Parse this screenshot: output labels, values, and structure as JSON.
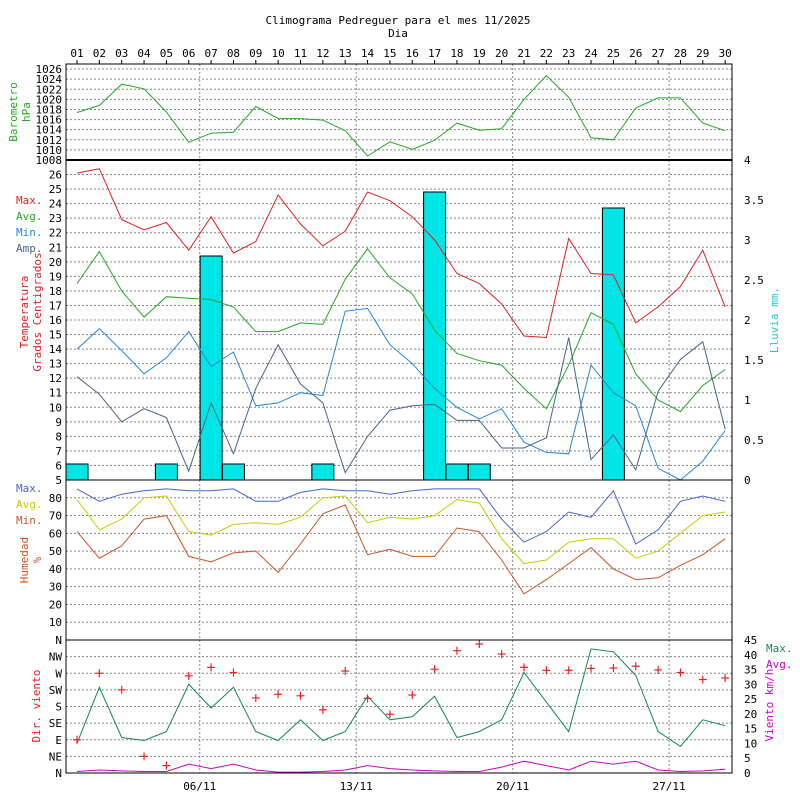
{
  "title": "Climograma Pedreguer para el mes 11/2025",
  "xlabel": "Dia",
  "colors": {
    "pressure": "#22aa22",
    "temp_max": "#dd2222",
    "temp_avg": "#22aa22",
    "temp_min": "#2288dd",
    "temp_amp": "#446688",
    "rain": "#00e5e5",
    "hum_max": "#4466cc",
    "hum_avg": "#cccc00",
    "hum_min": "#cc5522",
    "wind_dir": "#ee2222",
    "wind_max": "#118855",
    "wind_avg": "#cc00cc",
    "grid": "#888888"
  },
  "chart_data": [
    {
      "type": "line",
      "name": "pressure",
      "ylabel": [
        "Barometro",
        "hPa"
      ],
      "x": [
        "01",
        "02",
        "03",
        "04",
        "05",
        "06",
        "07",
        "08",
        "09",
        "10",
        "11",
        "12",
        "13",
        "14",
        "15",
        "16",
        "17",
        "18",
        "19",
        "20",
        "21",
        "22",
        "23",
        "24",
        "25",
        "26",
        "27",
        "28",
        "29",
        "30"
      ],
      "series": [
        {
          "values": [
            1017.4,
            1018.8,
            1023.0,
            1022.1,
            1017.5,
            1011.5,
            1013.3,
            1013.5,
            1018.6,
            1016.2,
            1016.2,
            1015.9,
            1013.8,
            1008.8,
            1011.6,
            1010.1,
            1011.9,
            1015.3,
            1013.9,
            1014.2,
            1020.0,
            1024.7,
            1020.4,
            1012.4,
            1012.0,
            1018.3,
            1020.3,
            1020.3,
            1015.3,
            1013.8
          ]
        }
      ],
      "yticks": [
        "1008",
        "1010",
        "1012",
        "1014",
        "1016",
        "1018",
        "1020",
        "1022",
        "1024",
        "1026"
      ],
      "ylim": [
        1008,
        1027
      ]
    },
    {
      "type": "line+bar",
      "name": "temperature-rain",
      "ylabel": [
        "Temperatura",
        "Grados Centigrados"
      ],
      "y2label": "Lluvia mm.",
      "legend": [
        {
          "label": "Max.",
          "key": "temp_max"
        },
        {
          "label": "Avg.",
          "key": "temp_avg"
        },
        {
          "label": "Min.",
          "key": "temp_min"
        },
        {
          "label": "Amp.",
          "key": "temp_amp"
        }
      ],
      "series": {
        "max": [
          26.1,
          26.4,
          22.9,
          22.2,
          22.7,
          20.8,
          23.1,
          20.6,
          21.4,
          24.6,
          22.6,
          21.1,
          22.1,
          24.8,
          24.2,
          23.1,
          21.5,
          19.2,
          18.5,
          17.1,
          14.9,
          14.8,
          21.6,
          19.2,
          19.1,
          15.8,
          16.9,
          18.3,
          20.8,
          16.9
        ],
        "avg": [
          18.5,
          20.7,
          18.0,
          16.2,
          17.6,
          17.5,
          17.4,
          16.9,
          15.2,
          15.2,
          15.8,
          15.7,
          18.8,
          20.9,
          18.9,
          17.8,
          15.3,
          13.7,
          13.2,
          12.9,
          11.3,
          9.9,
          12.9,
          16.5,
          15.7,
          12.3,
          10.5,
          9.7,
          11.5,
          12.6
        ],
        "min": [
          14.0,
          15.4,
          13.9,
          12.3,
          13.4,
          15.2,
          12.8,
          13.8,
          10.1,
          10.3,
          11.0,
          10.8,
          16.6,
          16.8,
          14.3,
          13.0,
          11.3,
          10.0,
          9.2,
          9.9,
          7.6,
          6.9,
          6.8,
          12.9,
          11.0,
          10.1,
          5.8,
          5.0,
          6.3,
          8.4
        ],
        "amp": [
          12.1,
          10.9,
          9.0,
          9.9,
          9.3,
          5.6,
          10.3,
          6.8,
          11.3,
          14.3,
          11.6,
          10.3,
          5.5,
          8.0,
          9.8,
          10.1,
          10.2,
          9.1,
          9.1,
          7.2,
          7.2,
          7.9,
          14.8,
          6.4,
          8.1,
          5.7,
          11.1,
          13.3,
          14.5,
          8.5
        ]
      },
      "rain": [
        0.2,
        0,
        0,
        0,
        0.2,
        0,
        2.8,
        0.2,
        0,
        0,
        0,
        0.2,
        0,
        0,
        0,
        0,
        3.6,
        0.2,
        0.2,
        0,
        0,
        0,
        0,
        0,
        3.4,
        0,
        0,
        0,
        0,
        0
      ],
      "yticks": [
        "5",
        "6",
        "7",
        "8",
        "9",
        "10",
        "11",
        "12",
        "13",
        "14",
        "15",
        "16",
        "17",
        "18",
        "19",
        "20",
        "21",
        "22",
        "23",
        "24",
        "25",
        "26"
      ],
      "ylim": [
        5,
        27
      ],
      "y2ticks": [
        "0",
        "0.5",
        "1",
        "1.5",
        "2",
        "2.5",
        "3",
        "3.5",
        "4"
      ],
      "y2lim": [
        0,
        4
      ]
    },
    {
      "type": "line",
      "name": "humidity",
      "ylabel": [
        "Humedad",
        "%"
      ],
      "legend": [
        {
          "label": "Max.",
          "key": "hum_max"
        },
        {
          "label": "Avg.",
          "key": "hum_avg"
        },
        {
          "label": "Min.",
          "key": "hum_min"
        }
      ],
      "series": {
        "max": [
          85,
          78,
          82,
          84,
          85,
          84,
          84,
          85,
          78,
          78,
          83,
          85,
          84,
          84,
          82,
          84,
          85,
          85,
          85,
          68,
          55,
          61,
          72,
          69,
          84,
          54,
          62,
          78,
          81,
          78
        ],
        "avg": [
          79,
          62,
          68,
          80,
          81,
          61,
          59,
          65,
          66,
          65,
          69,
          80,
          81,
          66,
          69,
          68,
          70,
          79,
          77,
          57,
          43,
          45,
          55,
          57,
          57,
          46,
          50,
          60,
          70,
          72
        ],
        "min": [
          61,
          46,
          53,
          68,
          70,
          47,
          44,
          49,
          50,
          38,
          54,
          71,
          76,
          48,
          51,
          47,
          47,
          63,
          61,
          45,
          26,
          34,
          43,
          52,
          40,
          34,
          35,
          42,
          48,
          57
        ]
      },
      "yticks": [
        "10",
        "20",
        "30",
        "40",
        "50",
        "60",
        "70",
        "80"
      ],
      "ylim": [
        0,
        90
      ]
    },
    {
      "type": "scatter+line",
      "name": "wind",
      "ylabel": "Dir. viento",
      "y2label": "Viento km/h",
      "legend": [
        {
          "label": "Max.",
          "key": "wind_max"
        },
        {
          "label": "Avg.",
          "key": "wind_avg"
        }
      ],
      "direction_ticks": [
        "N",
        "NE",
        "E",
        "SE",
        "S",
        "SW",
        "W",
        "NW",
        "N"
      ],
      "direction_deg": [
        90,
        270,
        225,
        45,
        20,
        263,
        286,
        272,
        203,
        213,
        209,
        171,
        276,
        202,
        159,
        211,
        281,
        331,
        371,
        322,
        286,
        278,
        278,
        283,
        284,
        289,
        279,
        272,
        253,
        257
      ],
      "series": {
        "max": [
          10,
          29,
          12,
          11,
          14,
          30,
          22,
          29,
          14,
          11,
          18,
          11,
          14,
          26,
          18,
          19,
          26,
          12,
          14,
          18,
          34,
          24,
          14,
          42,
          41,
          33,
          14,
          9,
          18,
          16
        ],
        "avg": [
          0.5,
          1,
          0.7,
          0.5,
          0.5,
          3,
          1.5,
          3,
          1,
          0.3,
          0.3,
          0.5,
          1,
          2.5,
          1.5,
          1,
          0.7,
          0.5,
          0.5,
          2,
          4,
          2.5,
          1,
          4,
          3,
          4,
          1,
          0.5,
          0.7,
          1.3
        ]
      },
      "y2ticks": [
        "0",
        "5",
        "10",
        "15",
        "20",
        "25",
        "30",
        "35",
        "40",
        "45"
      ],
      "y2lim": [
        0,
        45
      ],
      "xticks": [
        "06/11",
        "13/11",
        "20/11",
        "27/11"
      ]
    }
  ]
}
